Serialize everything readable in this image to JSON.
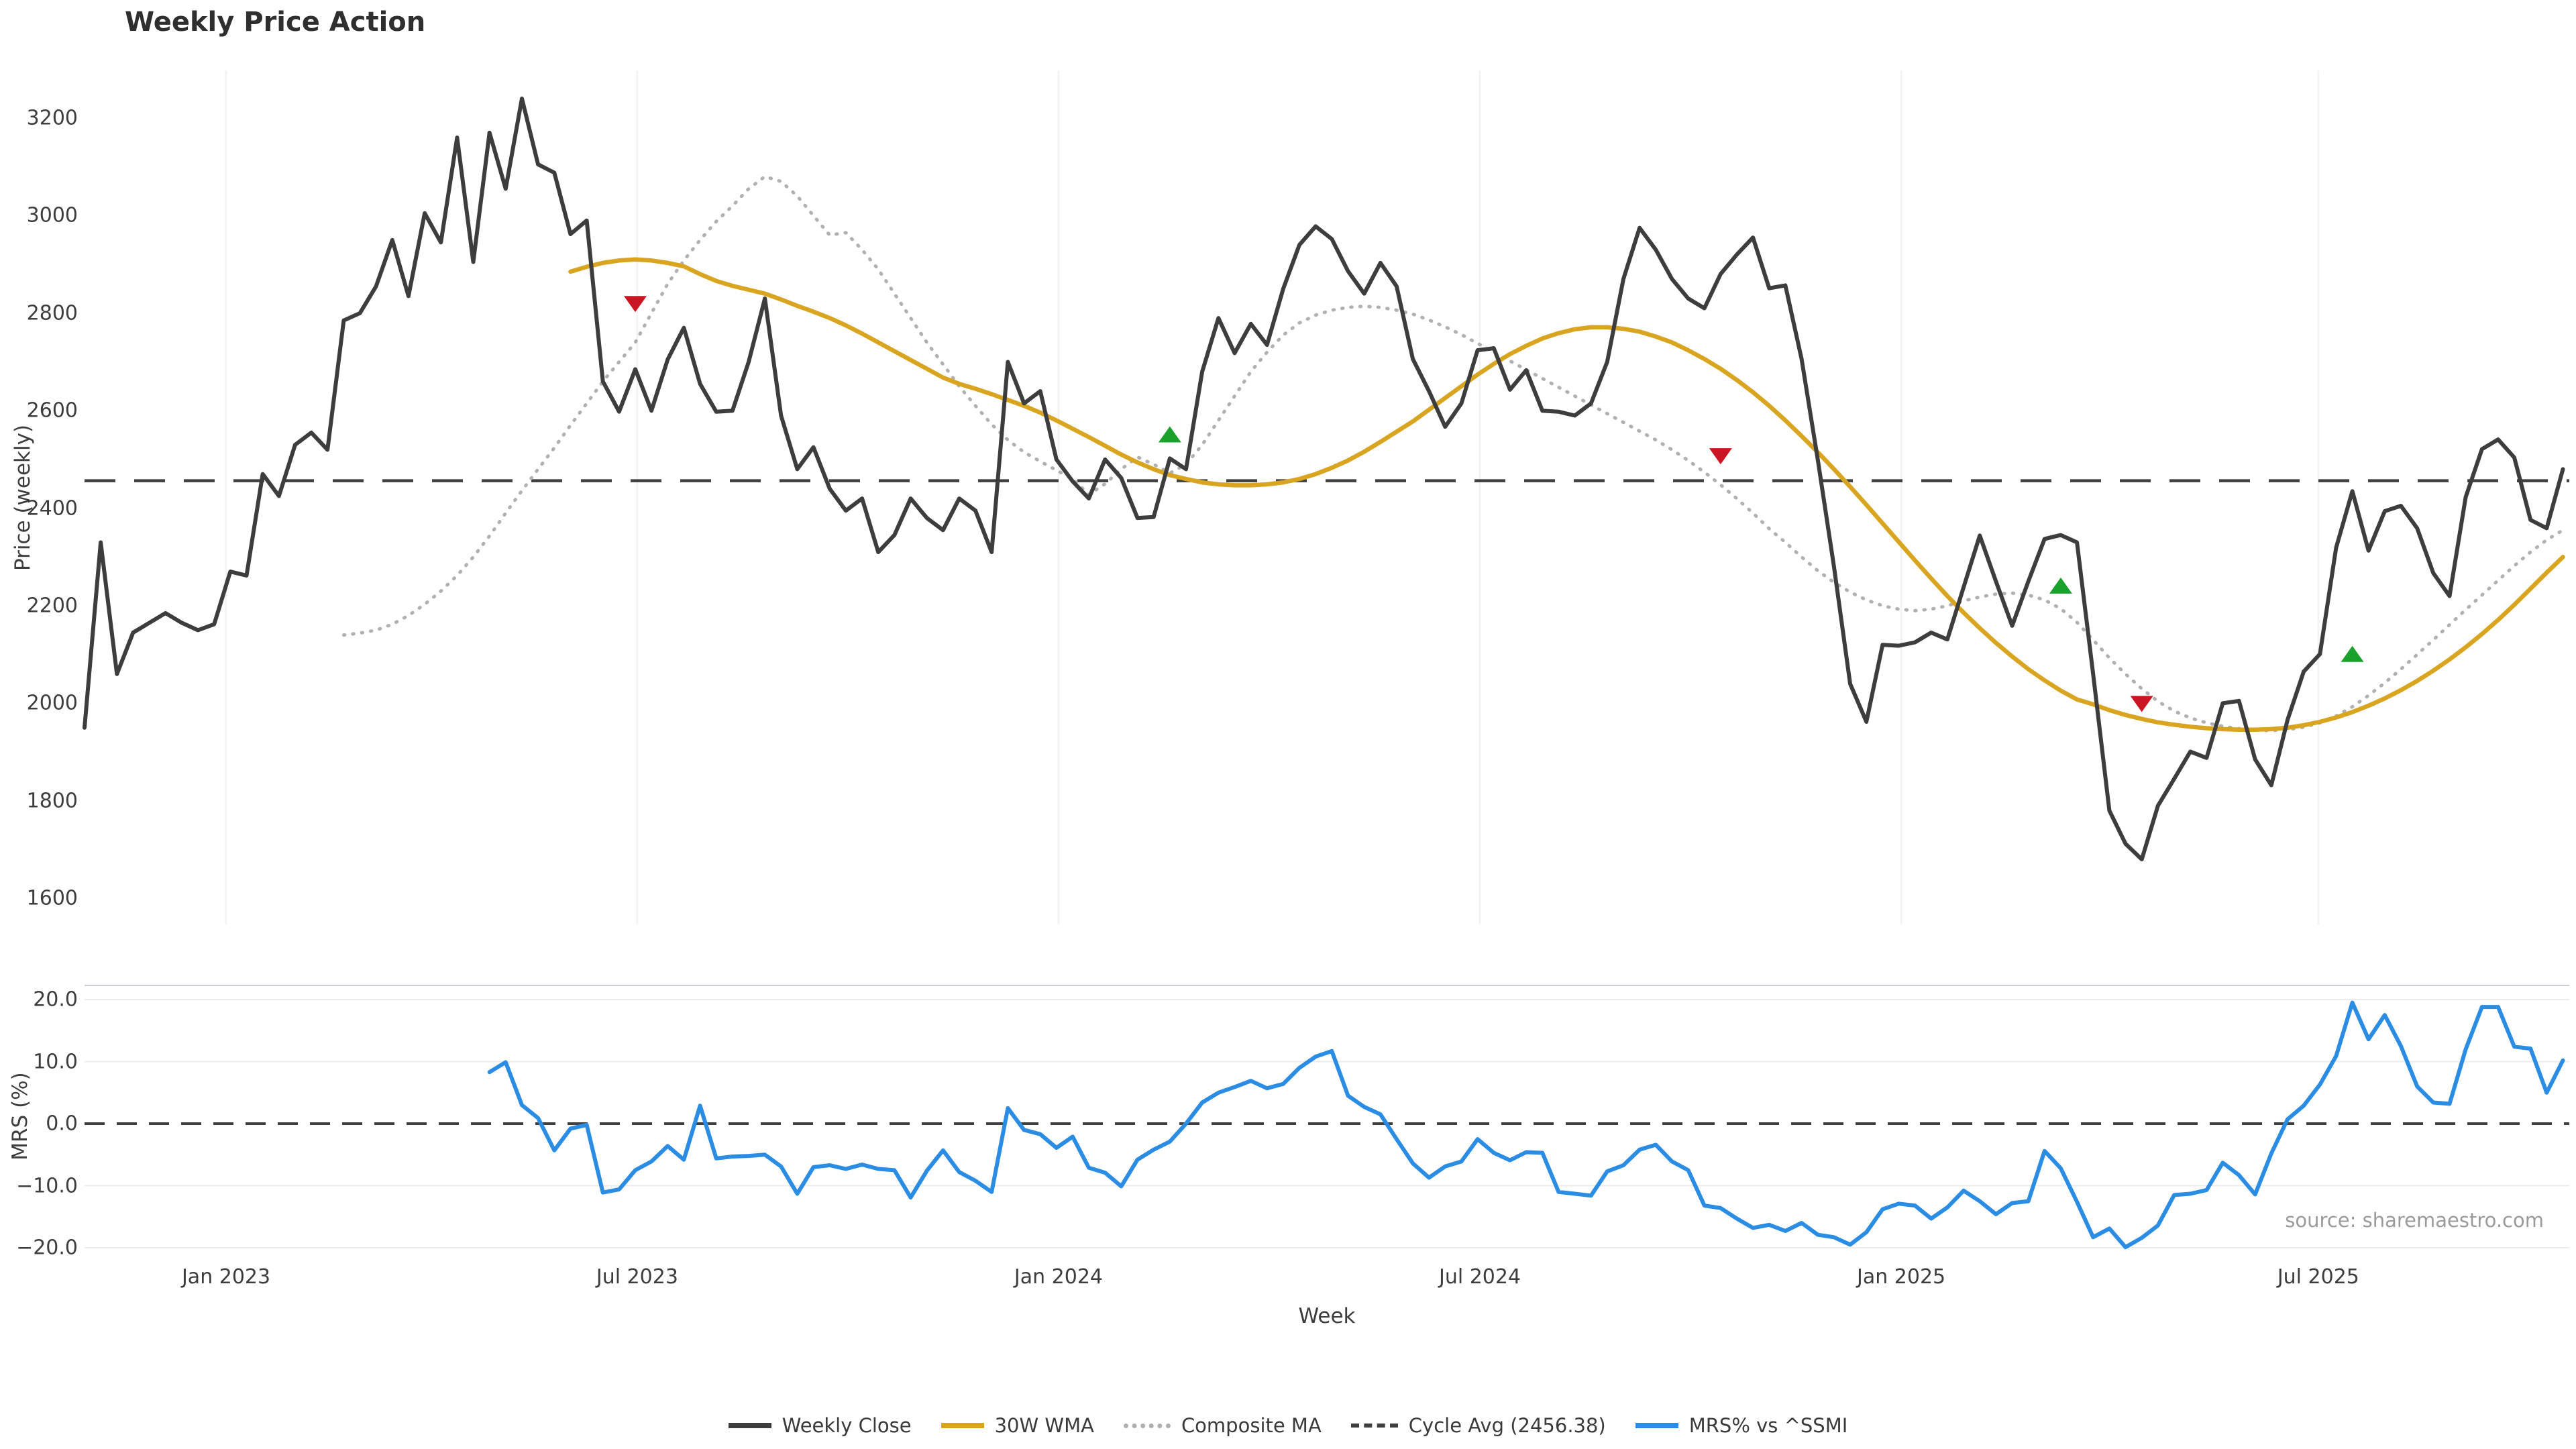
{
  "title": "Weekly Price Action",
  "source_note": "source: sharemaestro.com",
  "axes": {
    "price_axis_label": "Price (weekly)",
    "mrs_axis_label": "MRS (%)",
    "x_axis_label": "Week",
    "price_ticks": [
      1600,
      1800,
      2000,
      2200,
      2400,
      2600,
      2800,
      3000,
      3200
    ],
    "mrs_ticks": [
      {
        "v": 20,
        "label": "20.0"
      },
      {
        "v": 10,
        "label": "10.0"
      },
      {
        "v": 0,
        "label": "0.0"
      },
      {
        "v": -10,
        "label": "−10.0"
      },
      {
        "v": -20,
        "label": "−20.0"
      }
    ],
    "x_ticks": [
      {
        "label": "Jan 2023",
        "week": 8.74
      },
      {
        "label": "Jul 2023",
        "week": 34.12
      },
      {
        "label": "Jan 2024",
        "week": 60.13
      },
      {
        "label": "Jul 2024",
        "week": 86.14
      },
      {
        "label": "Jan 2025",
        "week": 112.15
      },
      {
        "label": "Jul 2025",
        "week": 137.9
      }
    ]
  },
  "legend": [
    {
      "label": "Weekly Close",
      "swatch": "close"
    },
    {
      "label": "30W WMA",
      "swatch": "wma"
    },
    {
      "label": "Composite MA",
      "swatch": "comp"
    },
    {
      "label": "Cycle Avg (2456.38)",
      "swatch": "cycle"
    },
    {
      "label": "MRS% vs ^SSMI",
      "swatch": "mrs"
    }
  ],
  "colors": {
    "weekly_close": "#3d3d3d",
    "wma": "#d9a521",
    "composite": "#b0b0b0",
    "cycle_avg": "#3f3f3f",
    "mrs": "#2b8ce4",
    "sell_marker": "#cc1522",
    "buy_marker": "#1aa12b",
    "grid_vertical": "#f2f2f6",
    "grid_horizontal": "#ebebee",
    "panel_spine": "#cccdd6"
  },
  "chart_data": [
    {
      "type": "line",
      "panel": "price",
      "title": "Weekly Price Action",
      "xlabel": "Week",
      "ylabel": "Price (weekly)",
      "ylim": [
        1544,
        3304
      ],
      "x_unit": "week_index",
      "weeks_total": 154,
      "grid": "vertical-only",
      "cycle_avg": 2456.38,
      "series": [
        {
          "name": "Weekly Close",
          "style": "solid",
          "start_week": 0,
          "values": [
            1950,
            2330,
            2060,
            2145,
            2165,
            2185,
            2165,
            2150,
            2162,
            2270,
            2262,
            2470,
            2425,
            2530,
            2555,
            2520,
            2785,
            2800,
            2855,
            2950,
            2835,
            3005,
            2945,
            3160,
            2905,
            3170,
            3055,
            3240,
            3105,
            3088,
            2962,
            2990,
            2660,
            2598,
            2685,
            2600,
            2705,
            2770,
            2655,
            2598,
            2600,
            2700,
            2830,
            2590,
            2480,
            2525,
            2440,
            2395,
            2420,
            2310,
            2345,
            2420,
            2380,
            2355,
            2420,
            2395,
            2310,
            2700,
            2615,
            2640,
            2500,
            2455,
            2420,
            2500,
            2462,
            2380,
            2382,
            2502,
            2480,
            2680,
            2790,
            2718,
            2778,
            2735,
            2850,
            2940,
            2978,
            2952,
            2886,
            2840,
            2903,
            2855,
            2706,
            2640,
            2567,
            2615,
            2724,
            2728,
            2643,
            2683,
            2600,
            2598,
            2590,
            2615,
            2700,
            2870,
            2975,
            2930,
            2870,
            2830,
            2810,
            2880,
            2920,
            2955,
            2851,
            2857,
            2706,
            2500,
            2280,
            2040,
            1962,
            2120,
            2118,
            2125,
            2145,
            2131,
            2238,
            2344,
            2250,
            2159,
            2250,
            2337,
            2345,
            2330,
            2060,
            1780,
            1712,
            1680,
            1790,
            1845,
            1901,
            1888,
            2000,
            2005,
            1885,
            1832,
            1966,
            2065,
            2101,
            2319,
            2435,
            2313,
            2394,
            2405,
            2359,
            2267,
            2220,
            2423,
            2521,
            2541,
            2504,
            2376,
            2359,
            2480
          ]
        },
        {
          "name": "30W WMA",
          "style": "solid",
          "start_week": 30,
          "values": [
            2885,
            2895,
            2903,
            2908,
            2910,
            2908,
            2903,
            2896,
            2880,
            2866,
            2856,
            2848,
            2840,
            2828,
            2815,
            2803,
            2790,
            2775,
            2758,
            2740,
            2722,
            2704,
            2686,
            2668,
            2655,
            2645,
            2634,
            2622,
            2610,
            2596,
            2580,
            2563,
            2546,
            2528,
            2510,
            2494,
            2480,
            2468,
            2460,
            2453,
            2449,
            2447,
            2447,
            2449,
            2453,
            2460,
            2470,
            2483,
            2498,
            2516,
            2536,
            2557,
            2578,
            2602,
            2626,
            2650,
            2674,
            2696,
            2716,
            2733,
            2748,
            2759,
            2767,
            2771,
            2771,
            2768,
            2762,
            2752,
            2740,
            2724,
            2706,
            2686,
            2663,
            2638,
            2610,
            2580,
            2548,
            2515,
            2480,
            2444,
            2407,
            2369,
            2331,
            2293,
            2256,
            2220,
            2186,
            2154,
            2124,
            2096,
            2070,
            2047,
            2026,
            2008,
            1998,
            1986,
            1976,
            1968,
            1961,
            1956,
            1952,
            1949,
            1947,
            1946,
            1946,
            1947,
            1950,
            1955,
            1962,
            1971,
            1982,
            1995,
            2010,
            2027,
            2046,
            2067,
            2090,
            2115,
            2142,
            2171,
            2202,
            2235,
            2268,
            2300
          ]
        },
        {
          "name": "Composite MA",
          "style": "dotted",
          "start_week": 16,
          "values": [
            2140,
            2144,
            2150,
            2162,
            2180,
            2203,
            2230,
            2262,
            2300,
            2343,
            2390,
            2436,
            2480,
            2524,
            2570,
            2615,
            2660,
            2700,
            2740,
            2800,
            2860,
            2908,
            2950,
            2988,
            3020,
            3055,
            3080,
            3070,
            3040,
            3000,
            2960,
            2965,
            2930,
            2890,
            2840,
            2790,
            2740,
            2695,
            2650,
            2610,
            2572,
            2540,
            2515,
            2496,
            2478,
            2460,
            2428,
            2450,
            2480,
            2505,
            2490,
            2472,
            2490,
            2530,
            2580,
            2630,
            2680,
            2720,
            2755,
            2780,
            2796,
            2806,
            2812,
            2814,
            2812,
            2806,
            2798,
            2786,
            2772,
            2756,
            2738,
            2720,
            2702,
            2684,
            2666,
            2648,
            2630,
            2612,
            2594,
            2576,
            2558,
            2540,
            2520,
            2498,
            2474,
            2448,
            2420,
            2390,
            2358,
            2330,
            2300,
            2272,
            2248,
            2228,
            2212,
            2200,
            2193,
            2190,
            2193,
            2200,
            2210,
            2218,
            2224,
            2226,
            2222,
            2212,
            2194,
            2166,
            2130,
            2093,
            2060,
            2030,
            2004,
            1984,
            1970,
            1960,
            1953,
            1948,
            1945,
            1944,
            1946,
            1951,
            1960,
            1974,
            1993,
            2016,
            2042,
            2070,
            2100,
            2130,
            2161,
            2192,
            2222,
            2252,
            2282,
            2310,
            2335,
            2355
          ]
        }
      ],
      "sell_signals": [
        {
          "week": 34,
          "value": 2820
        },
        {
          "week": 101,
          "value": 2508
        },
        {
          "week": 127,
          "value": 2000
        }
      ],
      "buy_signals": [
        {
          "week": 67,
          "value": 2550
        },
        {
          "week": 122,
          "value": 2240
        },
        {
          "week": 140,
          "value": 2100
        }
      ]
    },
    {
      "type": "line",
      "panel": "mrs",
      "ylabel": "MRS (%)",
      "ylim": [
        -21.2,
        22.3
      ],
      "grid": "horizontal-only",
      "zero_line": 0,
      "series": [
        {
          "name": "MRS% vs ^SSMI",
          "style": "solid",
          "start_week": 25,
          "values": [
            8.3,
            9.9,
            3.0,
            0.9,
            -4.3,
            -0.8,
            -0.2,
            -11.1,
            -10.6,
            -7.5,
            -6.1,
            -3.6,
            -5.8,
            2.9,
            -5.6,
            -5.3,
            -5.2,
            -5.0,
            -6.9,
            -11.3,
            -7.0,
            -6.7,
            -7.3,
            -6.6,
            -7.3,
            -7.5,
            -11.9,
            -7.6,
            -4.3,
            -7.8,
            -9.2,
            -11.0,
            2.5,
            -1.0,
            -1.7,
            -3.9,
            -2.1,
            -7.1,
            -7.9,
            -10.1,
            -5.8,
            -4.2,
            -2.9,
            0.0,
            3.4,
            5.0,
            5.9,
            6.9,
            5.7,
            6.4,
            9.0,
            10.8,
            11.7,
            4.5,
            2.7,
            1.5,
            -2.5,
            -6.4,
            -8.7,
            -6.9,
            -6.1,
            -2.5,
            -4.7,
            -5.9,
            -4.6,
            -4.7,
            -11.0,
            -11.3,
            -11.6,
            -7.7,
            -6.7,
            -4.2,
            -3.4,
            -6.1,
            -7.5,
            -13.2,
            -13.6,
            -15.3,
            -16.8,
            -16.3,
            -17.3,
            -16.0,
            -17.9,
            -18.3,
            -19.5,
            -17.5,
            -13.8,
            -12.9,
            -13.2,
            -15.3,
            -13.5,
            -10.8,
            -12.5,
            -14.6,
            -12.8,
            -12.5,
            -4.4,
            -7.2,
            -12.6,
            -18.3,
            -16.9,
            -19.9,
            -18.4,
            -16.4,
            -11.5,
            -11.3,
            -10.7,
            -6.3,
            -8.3,
            -11.4,
            -4.8,
            0.7,
            2.9,
            6.3,
            10.9,
            19.5,
            13.6,
            17.5,
            12.5,
            6.0,
            3.4,
            3.2,
            12.0,
            18.8,
            18.8,
            12.4,
            12.1,
            5.0,
            10.2
          ]
        }
      ]
    }
  ]
}
